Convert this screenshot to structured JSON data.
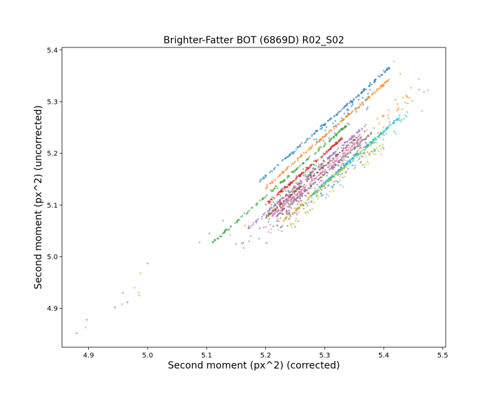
{
  "chart_data": {
    "type": "scatter",
    "title": "Brighter-Fatter BOT (6869D) R02_S02",
    "xlabel": "Second moment (px^2) (corrected)",
    "ylabel": "Second moment (px^2) (uncorrected)",
    "xlim": [
      4.855,
      5.505
    ],
    "ylim": [
      4.825,
      5.405
    ],
    "x_ticks": [
      "4.9",
      "5.0",
      "5.1",
      "5.2",
      "5.3",
      "5.4",
      "5.5"
    ],
    "y_ticks": [
      "4.9",
      "5.0",
      "5.1",
      "5.2",
      "5.3",
      "5.4"
    ],
    "grid": false,
    "legend": "none",
    "series": [
      {
        "color": "#1f77b4",
        "line": {
          "x0": 5.19,
          "x1": 5.41,
          "slope": 1.0,
          "intercept": -0.044
        },
        "scatter_offset": -0.062,
        "scatter_range": [
          5.28,
          5.38
        ]
      },
      {
        "color": "#ff7f0e",
        "line": {
          "x0": 5.2,
          "x1": 5.41,
          "slope": 1.0,
          "intercept": -0.066
        },
        "scatter_offset": -0.135,
        "scatter_range": [
          5.3,
          5.47
        ]
      },
      {
        "color": "#2ca02c",
        "line": {
          "x0": 5.11,
          "x1": 5.34,
          "slope": 1.0,
          "intercept": -0.083
        },
        "scatter_offset": -0.11,
        "scatter_range": [
          5.2,
          5.3
        ]
      },
      {
        "color": "#d62728",
        "line": {
          "x0": 5.2,
          "x1": 5.33,
          "slope": 1.0,
          "intercept": -0.1
        },
        "scatter_offset": -0.13,
        "scatter_range": [
          5.22,
          5.3
        ]
      },
      {
        "color": "#9467bd",
        "line": {
          "x0": 5.17,
          "x1": 5.37,
          "slope": 1.0,
          "intercept": -0.115
        },
        "scatter_offset": -0.14,
        "scatter_range": [
          5.15,
          5.37
        ]
      },
      {
        "color": "#8c564b",
        "line": {
          "x0": 5.2,
          "x1": 5.36,
          "slope": 1.0,
          "intercept": -0.124
        },
        "scatter_offset": -0.15,
        "scatter_range": [
          5.2,
          5.36
        ]
      },
      {
        "color": "#e377c2",
        "line": {
          "x0": 5.21,
          "x1": 5.36,
          "slope": 1.0,
          "intercept": -0.132
        },
        "scatter_offset": -0.155,
        "scatter_range": [
          5.2,
          5.35
        ]
      },
      {
        "color": "#7f7f7f",
        "line": {
          "x0": 5.22,
          "x1": 5.38,
          "slope": 1.0,
          "intercept": -0.14
        },
        "scatter_offset": -0.165,
        "scatter_range": [
          5.22,
          5.38
        ]
      },
      {
        "color": "#bcbd22",
        "line": {
          "x0": 5.23,
          "x1": 5.4,
          "slope": 1.0,
          "intercept": -0.16
        },
        "scatter_offset": -0.18,
        "scatter_range": [
          5.24,
          5.4
        ]
      },
      {
        "color": "#17becf",
        "line": {
          "x0": 5.28,
          "x1": 5.43,
          "slope": 1.0,
          "intercept": -0.157
        },
        "scatter_offset": -0.17,
        "scatter_range": [
          5.27,
          5.44
        ]
      }
    ],
    "outliers": [
      {
        "x": 4.88,
        "y": 4.852,
        "color": "#1f77b4"
      },
      {
        "x": 4.895,
        "y": 4.863,
        "color": "#ff7f0e"
      },
      {
        "x": 4.897,
        "y": 4.878,
        "color": "#1f77b4"
      },
      {
        "x": 4.945,
        "y": 4.902,
        "color": "#1f77b4"
      },
      {
        "x": 4.957,
        "y": 4.908,
        "color": "#ff7f0e"
      },
      {
        "x": 4.958,
        "y": 4.93,
        "color": "#9467bd"
      },
      {
        "x": 4.966,
        "y": 4.912,
        "color": "#1f77b4"
      },
      {
        "x": 4.978,
        "y": 4.94,
        "color": "#e377c2"
      },
      {
        "x": 4.985,
        "y": 4.931,
        "color": "#ff7f0e"
      },
      {
        "x": 4.986,
        "y": 4.925,
        "color": "#ff7f0e"
      },
      {
        "x": 4.988,
        "y": 4.968,
        "color": "#ff7f0e"
      },
      {
        "x": 5.0,
        "y": 4.987,
        "color": "#9467bd"
      },
      {
        "x": 5.088,
        "y": 5.028,
        "color": "#7f7f7f"
      },
      {
        "x": 5.105,
        "y": 5.045,
        "color": "#2ca02c"
      },
      {
        "x": 5.12,
        "y": 5.035,
        "color": "#9467bd"
      },
      {
        "x": 5.128,
        "y": 5.07,
        "color": "#9467bd"
      },
      {
        "x": 5.14,
        "y": 5.042,
        "color": "#e377c2"
      },
      {
        "x": 5.15,
        "y": 5.025,
        "color": "#9467bd"
      },
      {
        "x": 5.165,
        "y": 5.06,
        "color": "#ff7f0e"
      },
      {
        "x": 5.172,
        "y": 5.03,
        "color": "#9467bd"
      },
      {
        "x": 5.19,
        "y": 5.055,
        "color": "#d62728"
      },
      {
        "x": 5.205,
        "y": 5.048,
        "color": "#7f7f7f"
      },
      {
        "x": 5.22,
        "y": 5.06,
        "color": "#9467bd"
      },
      {
        "x": 5.24,
        "y": 5.085,
        "color": "#1f77b4"
      },
      {
        "x": 5.4,
        "y": 5.36,
        "color": "#1f77b4"
      },
      {
        "x": 5.41,
        "y": 5.365,
        "color": "#9467bd"
      },
      {
        "x": 5.418,
        "y": 5.378,
        "color": "#ff7f0e"
      },
      {
        "x": 5.428,
        "y": 5.354,
        "color": "#ff7f0e"
      },
      {
        "x": 5.46,
        "y": 5.323,
        "color": "#9467bd"
      },
      {
        "x": 5.475,
        "y": 5.322,
        "color": "#17becf"
      },
      {
        "x": 5.465,
        "y": 5.282,
        "color": "#ff7f0e"
      },
      {
        "x": 5.44,
        "y": 5.28,
        "color": "#17becf"
      },
      {
        "x": 5.43,
        "y": 5.265,
        "color": "#ff7f0e"
      }
    ]
  }
}
